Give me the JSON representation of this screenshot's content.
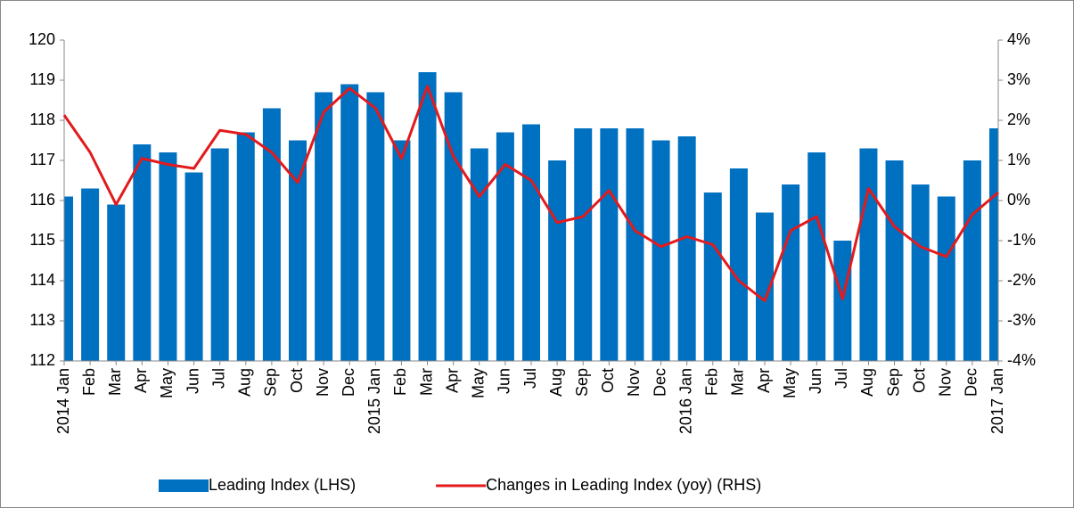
{
  "chart_data": {
    "type": "bar_line",
    "categories": [
      "2014 Jan",
      "Feb",
      "Mar",
      "Apr",
      "May",
      "Jun",
      "Jul",
      "Aug",
      "Sep",
      "Oct",
      "Nov",
      "Dec",
      "2015 Jan",
      "Feb",
      "Mar",
      "Apr",
      "May",
      "Jun",
      "Jul",
      "Aug",
      "Sep",
      "Oct",
      "Nov",
      "Dec",
      "2016 Jan",
      "Feb",
      "Mar",
      "Apr",
      "May",
      "Jun",
      "Jul",
      "Aug",
      "Sep",
      "Oct",
      "Nov",
      "Dec",
      "2017 Jan"
    ],
    "series": [
      {
        "name": "Leading Index (LHS)",
        "type": "bar",
        "color": "#0070c0",
        "values": [
          116.1,
          116.3,
          115.9,
          117.4,
          117.2,
          116.7,
          117.3,
          117.7,
          118.3,
          117.5,
          118.7,
          118.9,
          118.7,
          117.5,
          119.2,
          118.7,
          117.3,
          117.7,
          117.9,
          117.0,
          117.8,
          117.8,
          117.8,
          117.5,
          117.6,
          116.2,
          116.8,
          115.7,
          116.4,
          117.2,
          115.0,
          117.3,
          117.0,
          116.4,
          116.1,
          117.0,
          117.8
        ]
      },
      {
        "name": "Changes in Leading Index (yoy) (RHS)",
        "type": "line",
        "axis": "y2",
        "color": "#e31a1c",
        "values": [
          2.13,
          1.2,
          -0.1,
          1.05,
          0.9,
          0.8,
          1.75,
          1.65,
          1.2,
          0.45,
          2.2,
          2.8,
          2.3,
          1.05,
          2.85,
          1.1,
          0.1,
          0.9,
          0.5,
          -0.55,
          -0.4,
          0.25,
          -0.75,
          -1.15,
          -0.9,
          -1.1,
          -2.0,
          -2.5,
          -0.75,
          -0.4,
          -2.45,
          0.3,
          -0.65,
          -1.15,
          -1.4,
          -0.35,
          0.2
        ]
      }
    ],
    "ylim": [
      112,
      120
    ],
    "yticks": [
      112,
      113,
      114,
      115,
      116,
      117,
      118,
      119,
      120
    ],
    "y2lim": [
      -4,
      4
    ],
    "y2ticks": [
      {
        "value": -4,
        "label": "-4%"
      },
      {
        "value": -3,
        "label": "-3%"
      },
      {
        "value": -2,
        "label": "-2%"
      },
      {
        "value": -1,
        "label": "-1%"
      },
      {
        "value": 0,
        "label": "0%"
      },
      {
        "value": 1,
        "label": "1%"
      },
      {
        "value": 2,
        "label": "2%"
      },
      {
        "value": 3,
        "label": "3%"
      },
      {
        "value": 4,
        "label": "4%"
      }
    ],
    "grid": false,
    "legend": "bottom"
  }
}
